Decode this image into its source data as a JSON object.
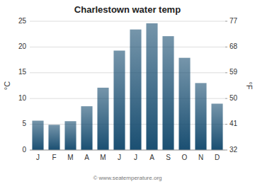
{
  "chart_data": {
    "type": "bar",
    "title": "Charlestown water temp",
    "categories": [
      "J",
      "F",
      "M",
      "A",
      "M",
      "J",
      "J",
      "A",
      "S",
      "O",
      "N",
      "D"
    ],
    "values": [
      5.7,
      4.9,
      5.6,
      8.5,
      12.1,
      19.3,
      23.4,
      24.6,
      22.1,
      17.9,
      13.0,
      9.0
    ],
    "color": "#1a4f72",
    "ylabel": "°C",
    "y2label": "°F",
    "ylim": [
      0,
      25
    ],
    "yticks": [
      0,
      5,
      10,
      15,
      20,
      25
    ],
    "y2lim": [
      32,
      77
    ],
    "y2ticks": [
      32,
      41,
      50,
      59,
      68,
      77
    ],
    "grid": true,
    "annotations": [
      "© www.seatemperature.org"
    ]
  }
}
